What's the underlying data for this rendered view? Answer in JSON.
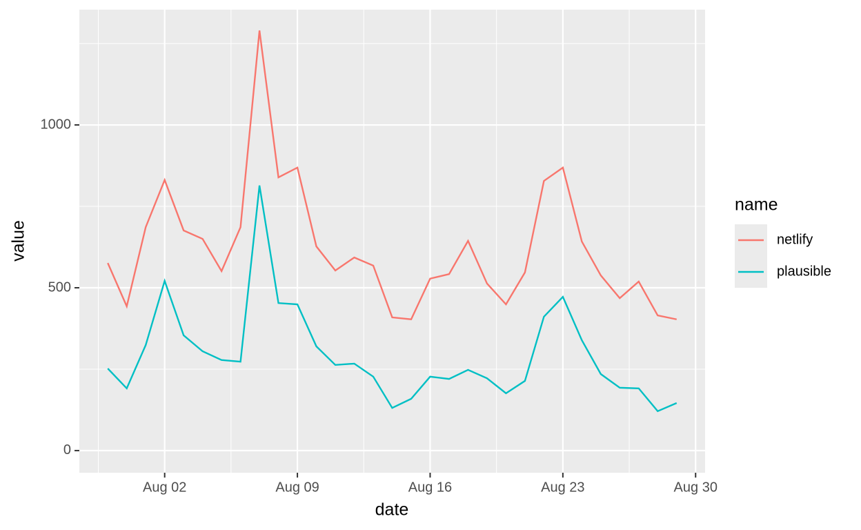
{
  "chart_data": {
    "type": "line",
    "x": [
      "Jul 30",
      "Jul 31",
      "Aug 01",
      "Aug 02",
      "Aug 03",
      "Aug 04",
      "Aug 05",
      "Aug 06",
      "Aug 07",
      "Aug 08",
      "Aug 09",
      "Aug 10",
      "Aug 11",
      "Aug 12",
      "Aug 13",
      "Aug 14",
      "Aug 15",
      "Aug 16",
      "Aug 17",
      "Aug 18",
      "Aug 19",
      "Aug 20",
      "Aug 21",
      "Aug 22",
      "Aug 23",
      "Aug 24",
      "Aug 25",
      "Aug 26",
      "Aug 27",
      "Aug 28",
      "Aug 29"
    ],
    "series": [
      {
        "name": "netlify",
        "color": "#f8766d",
        "values": [
          576,
          443,
          686,
          831,
          676,
          650,
          551,
          686,
          1290,
          839,
          869,
          627,
          553,
          593,
          568,
          409,
          403,
          528,
          542,
          644,
          513,
          449,
          547,
          828,
          869,
          642,
          538,
          468,
          519,
          415,
          403
        ]
      },
      {
        "name": "plausible",
        "color": "#00bfc4",
        "values": [
          252,
          191,
          324,
          521,
          354,
          305,
          278,
          273,
          814,
          453,
          449,
          320,
          263,
          267,
          227,
          131,
          159,
          227,
          220,
          248,
          222,
          176,
          214,
          411,
          472,
          339,
          235,
          193,
          191,
          121,
          146
        ]
      }
    ],
    "xlabel": "date",
    "ylabel": "value",
    "legend_title": "name",
    "xticks": [
      "Aug 02",
      "Aug 09",
      "Aug 16",
      "Aug 23",
      "Aug 30"
    ],
    "ylim": [
      -68,
      1354
    ],
    "yticks": [
      0,
      500,
      1000
    ],
    "grid": true,
    "legend": "right"
  }
}
